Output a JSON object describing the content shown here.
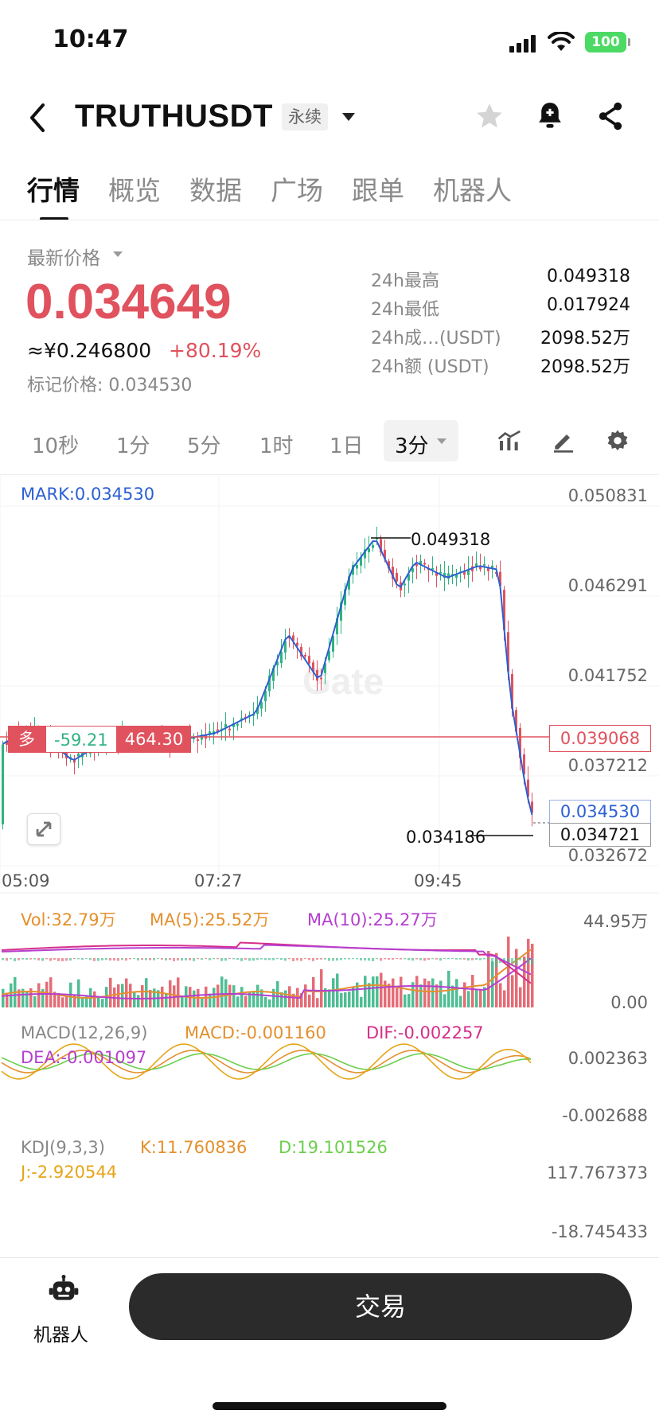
{
  "status_bar": {
    "time": "10:47",
    "battery": "100"
  },
  "header": {
    "symbol": "TRUTHUSDT",
    "badge": "永续"
  },
  "tabs": [
    "行情",
    "概览",
    "数据",
    "广场",
    "跟单",
    "机器人"
  ],
  "price": {
    "label": "最新价格",
    "last": "0.034649",
    "cny": "≈¥0.246800",
    "change": "+80.19%",
    "mark": "标记价格: 0.034530"
  },
  "stats": [
    {
      "label": "24h最高",
      "value": "0.049318"
    },
    {
      "label": "24h最低",
      "value": "0.017924"
    },
    {
      "label": "24h成…(USDT)",
      "value": "2098.52万"
    },
    {
      "label": "24h额 (USDT)",
      "value": "2098.52万"
    }
  ],
  "timeframes": [
    "10秒",
    "1分",
    "5分",
    "1时",
    "1日"
  ],
  "timeframe_active": "3分",
  "chart": {
    "mark_label": "MARK:0.034530",
    "y_axis": [
      "0.050831",
      "0.046291",
      "0.041752",
      "0.037212",
      "0.032672"
    ],
    "x_axis": [
      "05:09",
      "07:27",
      "09:45"
    ],
    "high_label": "0.049318",
    "low_label": "0.034186",
    "position": {
      "side": "多",
      "pnl": "-59.21",
      "value": "464.30"
    },
    "position_price": "0.039068",
    "mark_tag": "0.034530",
    "last_tag": "0.034721"
  },
  "volume": {
    "vol": "Vol:32.79万",
    "ma5": "MA(5):25.52万",
    "ma10": "MA(10):25.27万",
    "axis_top": "44.95万",
    "axis_bottom": "0.00"
  },
  "macd": {
    "name": "MACD(12,26,9)",
    "macd": "MACD:-0.001160",
    "dif": "DIF:-0.002257",
    "dea": "DEA:-0.001097",
    "axis_top": "0.002363",
    "axis_bottom": "-0.002688"
  },
  "kdj": {
    "name": "KDJ(9,3,3)",
    "k": "K:11.760836",
    "d": "D:19.101526",
    "j": "J:-2.920544",
    "axis_top": "117.767373",
    "axis_bottom": "-18.745433"
  },
  "bottom": {
    "robot_label": "机器人",
    "trade_label": "交易"
  },
  "colors": {
    "up": "#2fb380",
    "down": "#e0525e",
    "ma_blue": "#2c5fd3",
    "trade_button": "#2b2b2b"
  }
}
